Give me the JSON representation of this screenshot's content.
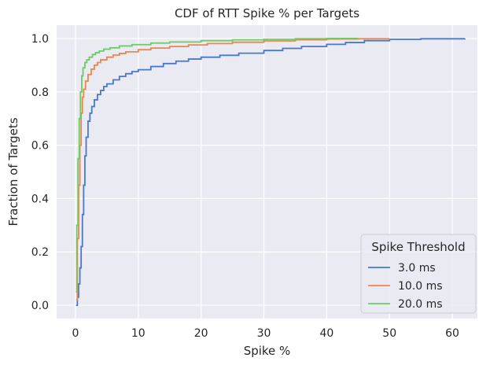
{
  "chart_data": {
    "type": "line",
    "step": true,
    "title": "CDF of RTT Spike % per Targets",
    "xlabel": "Spike %",
    "ylabel": "Fraction of Targets",
    "xlim": [
      -3,
      64
    ],
    "ylim": [
      -0.05,
      1.05
    ],
    "xticks": [
      0,
      10,
      20,
      30,
      40,
      50,
      60
    ],
    "yticks": [
      0.0,
      0.2,
      0.4,
      0.6,
      0.8,
      1.0
    ],
    "xtick_labels": [
      "0",
      "10",
      "20",
      "30",
      "40",
      "50",
      "60"
    ],
    "ytick_labels": [
      "0.0",
      "0.2",
      "0.4",
      "0.6",
      "0.8",
      "1.0"
    ],
    "grid": true,
    "background": "#eaeaf2",
    "legend": {
      "title": "Spike Threshold",
      "placement": "lower-right"
    },
    "series": [
      {
        "name": "3.0 ms",
        "color": "#4878d0",
        "x": [
          0.1,
          0.3,
          0.5,
          0.7,
          0.9,
          1.1,
          1.3,
          1.5,
          1.7,
          2.0,
          2.3,
          2.6,
          3.0,
          3.5,
          4.0,
          4.5,
          5.0,
          6.0,
          7.0,
          8.0,
          9.0,
          10.0,
          12.0,
          14.0,
          16.0,
          18.0,
          20.0,
          23.0,
          26.0,
          30.0,
          33.0,
          36.0,
          40.0,
          43.0,
          46.0,
          50.0,
          55.0,
          62.0
        ],
        "y": [
          0.0,
          0.03,
          0.08,
          0.14,
          0.22,
          0.34,
          0.45,
          0.56,
          0.63,
          0.69,
          0.72,
          0.745,
          0.77,
          0.79,
          0.805,
          0.82,
          0.83,
          0.845,
          0.858,
          0.868,
          0.876,
          0.883,
          0.895,
          0.906,
          0.915,
          0.923,
          0.93,
          0.937,
          0.945,
          0.955,
          0.963,
          0.97,
          0.978,
          0.985,
          0.992,
          0.997,
          0.999,
          1.0
        ]
      },
      {
        "name": "10.0 ms",
        "color": "#ee854a",
        "x": [
          0.1,
          0.3,
          0.5,
          0.7,
          0.9,
          1.1,
          1.3,
          1.6,
          2.0,
          2.5,
          3.0,
          3.5,
          4.0,
          5.0,
          6.0,
          7.0,
          8.0,
          10.0,
          12.0,
          15.0,
          18.0,
          21.0,
          25.0,
          30.0,
          35.0,
          40.0,
          45.0,
          50.0
        ],
        "y": [
          0.02,
          0.25,
          0.45,
          0.6,
          0.72,
          0.78,
          0.81,
          0.84,
          0.865,
          0.885,
          0.9,
          0.91,
          0.92,
          0.93,
          0.938,
          0.944,
          0.95,
          0.958,
          0.964,
          0.97,
          0.976,
          0.981,
          0.986,
          0.991,
          0.995,
          0.998,
          0.999,
          1.0
        ]
      },
      {
        "name": "20.0 ms",
        "color": "#6acc64",
        "x": [
          0.05,
          0.2,
          0.4,
          0.6,
          0.8,
          1.0,
          1.2,
          1.5,
          1.8,
          2.2,
          2.7,
          3.2,
          3.8,
          4.5,
          5.5,
          7.0,
          9.0,
          12.0,
          15.0,
          20.0,
          25.0,
          30.0,
          35.0,
          40.0,
          45.0
        ],
        "y": [
          0.05,
          0.3,
          0.55,
          0.7,
          0.8,
          0.86,
          0.89,
          0.91,
          0.92,
          0.93,
          0.94,
          0.947,
          0.953,
          0.96,
          0.965,
          0.972,
          0.977,
          0.983,
          0.987,
          0.992,
          0.995,
          0.997,
          0.999,
          1.0,
          1.0
        ]
      }
    ]
  }
}
